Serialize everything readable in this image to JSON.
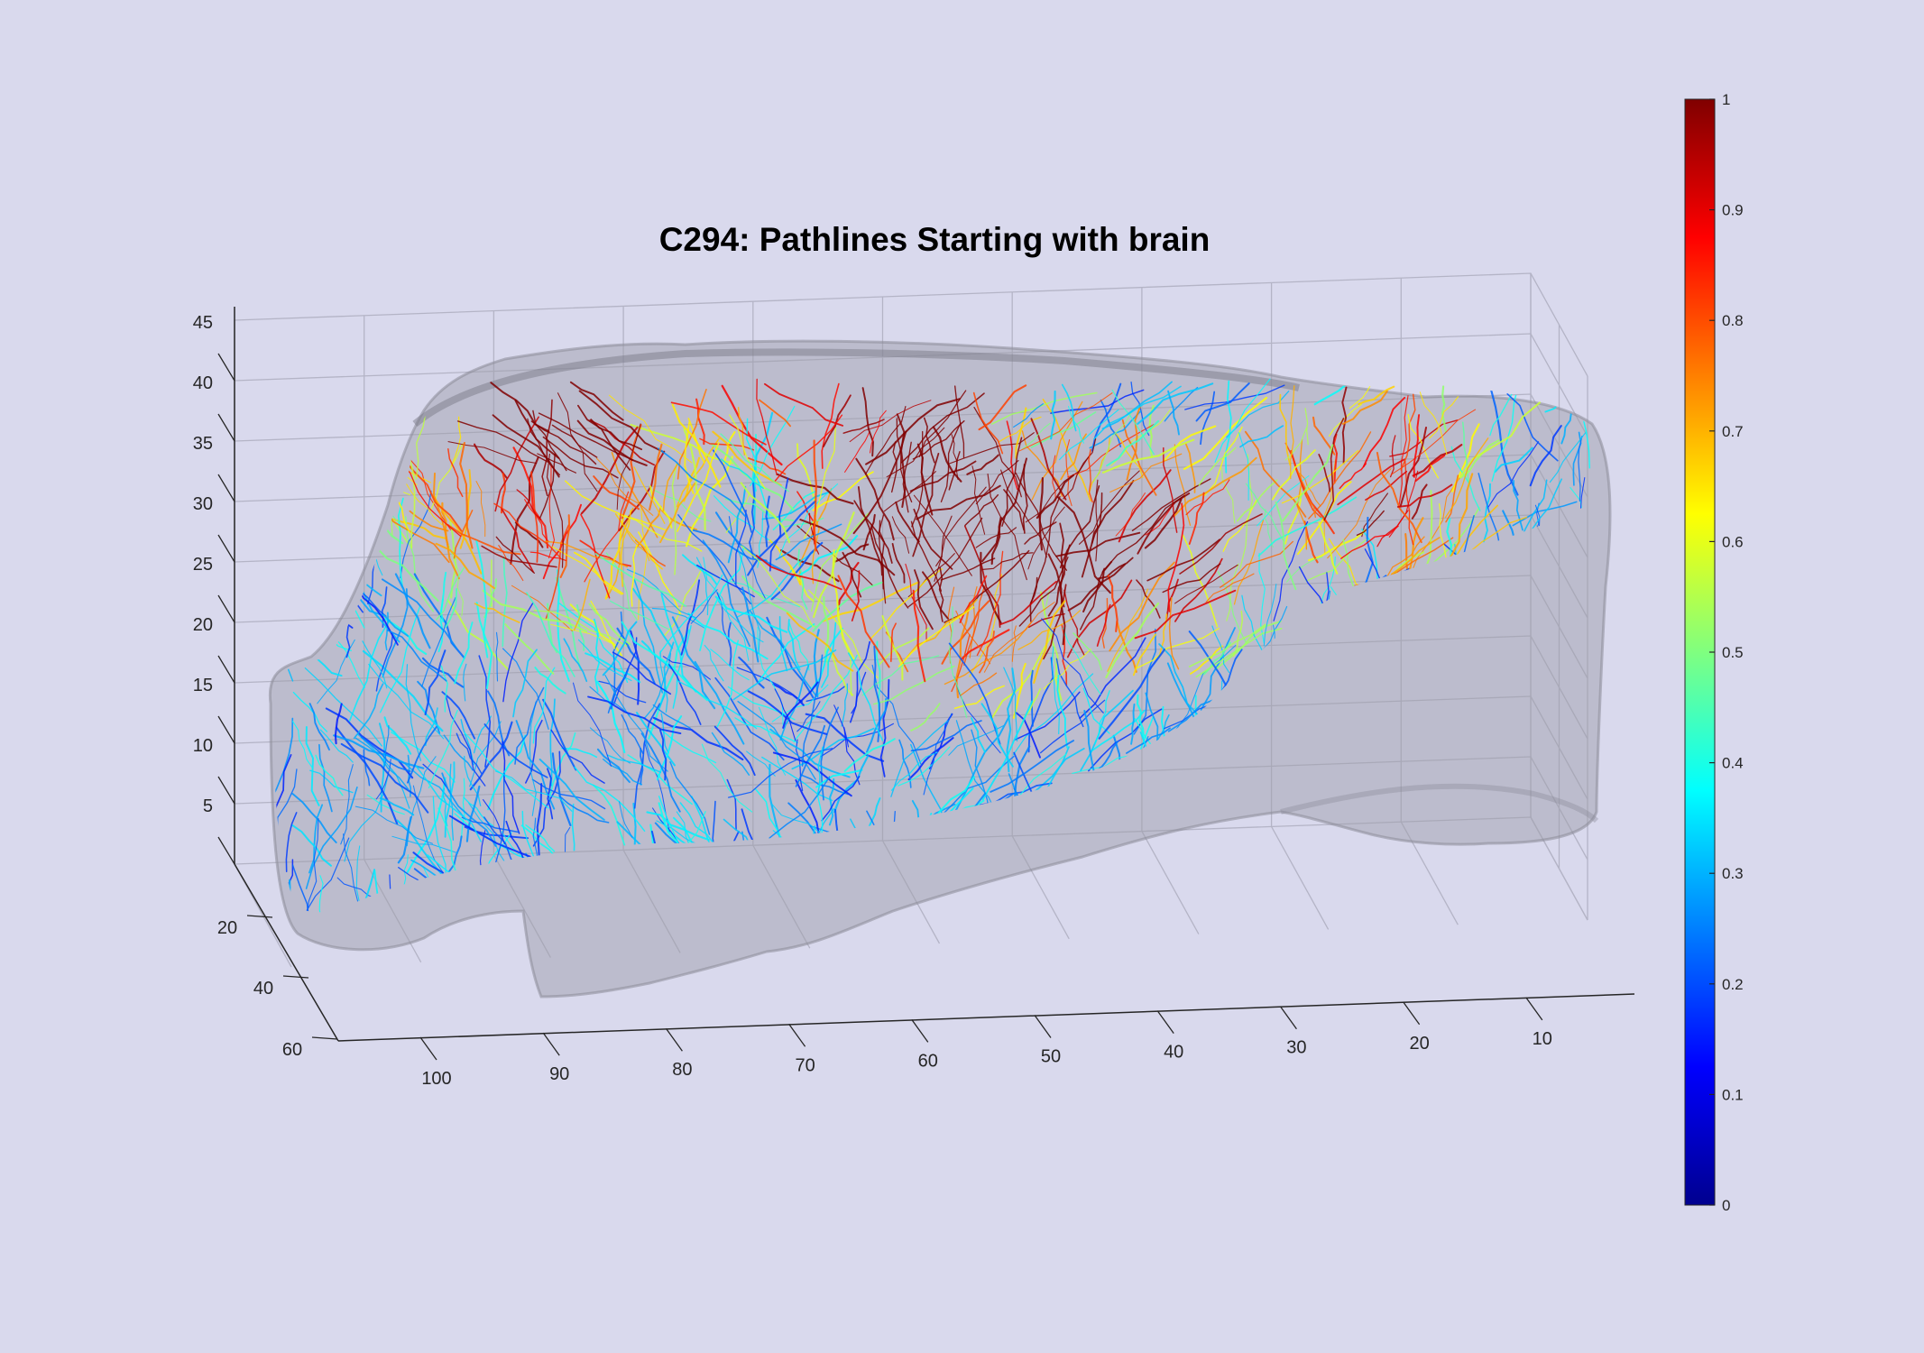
{
  "chart_data": {
    "type": "3d-pathlines",
    "title": "C294: Pathlines Starting with brain",
    "x_ticks": [
      "100",
      "90",
      "80",
      "70",
      "60",
      "50",
      "40",
      "30",
      "20",
      "10"
    ],
    "y_ticks": [
      "20",
      "40",
      "60"
    ],
    "z_ticks": [
      "5",
      "10",
      "15",
      "20",
      "25",
      "30",
      "35",
      "40",
      "45"
    ],
    "colorbar": {
      "colormap": "jet",
      "ticks": [
        "0",
        "0.1",
        "0.2",
        "0.3",
        "0.4",
        "0.5",
        "0.6",
        "0.7",
        "0.8",
        "0.9",
        "1"
      ],
      "range": [
        0,
        1
      ]
    },
    "grid": true,
    "colors": {
      "background": "#d9d9ed",
      "volume_fill": "#9a9aa6",
      "axis": "#262626",
      "grid": "#b8b8c8"
    }
  }
}
